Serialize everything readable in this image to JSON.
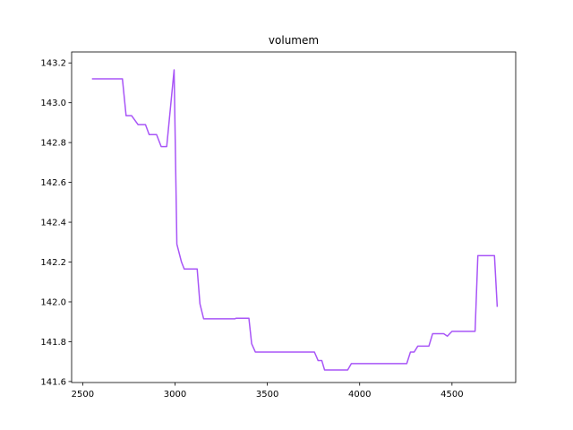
{
  "chart_data": {
    "type": "line",
    "title": "volumem",
    "xlabel": "",
    "ylabel": "",
    "xlim": [
      2440,
      4845
    ],
    "ylim": [
      141.595,
      143.255
    ],
    "xticks": [
      2500,
      3000,
      3500,
      4000,
      4500
    ],
    "yticks": [
      141.6,
      141.8,
      142.0,
      142.2,
      142.4,
      142.6,
      142.8,
      143.0,
      143.2
    ],
    "grid": false,
    "series": [
      {
        "color": "#a855f7",
        "points": [
          [
            2550,
            143.12
          ],
          [
            2715,
            143.12
          ],
          [
            2735,
            142.935
          ],
          [
            2765,
            142.935
          ],
          [
            2800,
            142.89
          ],
          [
            2840,
            142.89
          ],
          [
            2860,
            142.84
          ],
          [
            2900,
            142.84
          ],
          [
            2925,
            142.78
          ],
          [
            2955,
            142.78
          ],
          [
            2995,
            143.165
          ],
          [
            3010,
            142.29
          ],
          [
            3035,
            142.2
          ],
          [
            3050,
            142.165
          ],
          [
            3120,
            142.165
          ],
          [
            3135,
            141.99
          ],
          [
            3155,
            141.915
          ],
          [
            3325,
            141.915
          ],
          [
            3330,
            141.918
          ],
          [
            3400,
            141.918
          ],
          [
            3415,
            141.79
          ],
          [
            3435,
            141.748
          ],
          [
            3755,
            141.748
          ],
          [
            3775,
            141.705
          ],
          [
            3795,
            141.705
          ],
          [
            3810,
            141.658
          ],
          [
            3935,
            141.658
          ],
          [
            3955,
            141.69
          ],
          [
            4255,
            141.69
          ],
          [
            4275,
            141.748
          ],
          [
            4295,
            141.748
          ],
          [
            4315,
            141.778
          ],
          [
            4375,
            141.778
          ],
          [
            4395,
            141.84
          ],
          [
            4455,
            141.84
          ],
          [
            4475,
            141.828
          ],
          [
            4500,
            141.852
          ],
          [
            4625,
            141.852
          ],
          [
            4640,
            142.232
          ],
          [
            4730,
            142.232
          ],
          [
            4745,
            141.975
          ]
        ]
      }
    ]
  }
}
